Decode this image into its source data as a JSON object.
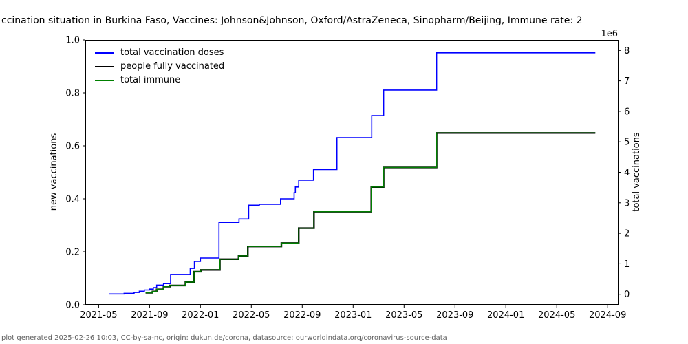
{
  "title": "ccination situation in Burkina Faso, Vaccines: Johnson&Johnson, Oxford/AstraZeneca, Sinopharm/Beijing, Immune rate: 2",
  "footer": "plot generated 2025-02-26 10:03, CC-by-sa-nc, origin: dukun.de/corona, datasource: ourworldindata.org/coronavirus-source-data",
  "legend": [
    {
      "label": "total vaccination doses",
      "color": "#0000ff"
    },
    {
      "label": "people fully vaccinated",
      "color": "#000000"
    },
    {
      "label": "total immune",
      "color": "#008000"
    }
  ],
  "left_axis": {
    "label": "new vaccinations"
  },
  "right_axis": {
    "label": "total vaccinations",
    "offset_label": "1e6"
  },
  "chart_data": {
    "type": "line",
    "step": "post",
    "grid": false,
    "legend_position": "upper left",
    "x_tick_labels": [
      "2021-05",
      "2021-09",
      "2022-01",
      "2022-05",
      "2022-09",
      "2023-01",
      "2023-05",
      "2023-09",
      "2024-01",
      "2024-05",
      "2024-09"
    ],
    "left_axis_ticks": [
      {
        "v": 0,
        "label": "0.0"
      },
      {
        "v": 0.2,
        "label": "0.2"
      },
      {
        "v": 0.4,
        "label": "0.4"
      },
      {
        "v": 0.6,
        "label": "0.6"
      },
      {
        "v": 0.8,
        "label": "0.8"
      },
      {
        "v": 1,
        "label": "1.0"
      }
    ],
    "right_axis_ticks": [
      {
        "v": 0,
        "label": "0"
      },
      {
        "v": 1000000,
        "label": "1"
      },
      {
        "v": 2000000,
        "label": "2"
      },
      {
        "v": 3000000,
        "label": "3"
      },
      {
        "v": 4000000,
        "label": "4"
      },
      {
        "v": 5000000,
        "label": "5"
      },
      {
        "v": 6000000,
        "label": "6"
      },
      {
        "v": 7000000,
        "label": "7"
      },
      {
        "v": 8000000,
        "label": "8"
      }
    ],
    "xlim_dates": [
      "2021-03-30",
      "2024-09-27"
    ],
    "left_ylim": [
      0,
      1
    ],
    "right_ylim": [
      -345000,
      8345000
    ],
    "series": [
      {
        "name": "total vaccination doses",
        "color": "#0000ff",
        "axis": "right",
        "points": [
          [
            "2021-05-26",
            10000
          ],
          [
            "2021-07-01",
            30000
          ],
          [
            "2021-07-25",
            60000
          ],
          [
            "2021-08-07",
            100000
          ],
          [
            "2021-08-19",
            140000
          ],
          [
            "2021-09-01",
            170000
          ],
          [
            "2021-09-10",
            220000
          ],
          [
            "2021-09-18",
            300000
          ],
          [
            "2021-10-04",
            350000
          ],
          [
            "2021-10-21",
            650000
          ],
          [
            "2021-12-07",
            850000
          ],
          [
            "2021-12-17",
            1080000
          ],
          [
            "2022-01-01",
            1190000
          ],
          [
            "2022-02-15",
            2360000
          ],
          [
            "2022-04-02",
            2470000
          ],
          [
            "2022-04-25",
            2920000
          ],
          [
            "2022-05-20",
            2950000
          ],
          [
            "2022-07-10",
            3130000
          ],
          [
            "2022-08-12",
            3330000
          ],
          [
            "2022-08-15",
            3520000
          ],
          [
            "2022-08-23",
            3740000
          ],
          [
            "2022-09-28",
            4090000
          ],
          [
            "2022-11-23",
            5140000
          ],
          [
            "2023-02-15",
            5860000
          ],
          [
            "2023-03-13",
            6700000
          ],
          [
            "2023-07-18",
            7920000
          ],
          [
            "2024-08-02",
            7920000
          ]
        ]
      },
      {
        "name": "people fully vaccinated",
        "color": "#000000",
        "axis": "right",
        "points": [
          [
            "2021-08-22",
            50000
          ],
          [
            "2021-09-08",
            90000
          ],
          [
            "2021-09-18",
            160000
          ],
          [
            "2021-10-04",
            250000
          ],
          [
            "2021-10-19",
            290000
          ],
          [
            "2021-11-26",
            400000
          ],
          [
            "2021-12-16",
            740000
          ],
          [
            "2022-01-02",
            800000
          ],
          [
            "2022-02-17",
            1150000
          ],
          [
            "2022-04-01",
            1260000
          ],
          [
            "2022-04-23",
            1570000
          ],
          [
            "2022-07-12",
            1680000
          ],
          [
            "2022-08-23",
            2170000
          ],
          [
            "2022-09-29",
            2710000
          ],
          [
            "2023-02-14",
            3520000
          ],
          [
            "2023-03-13",
            4160000
          ],
          [
            "2023-07-18",
            5290000
          ],
          [
            "2024-08-02",
            5290000
          ]
        ]
      },
      {
        "name": "total immune",
        "color": "#008000",
        "axis": "right",
        "points": [
          [
            "2021-08-22",
            50000
          ],
          [
            "2021-09-08",
            90000
          ],
          [
            "2021-09-18",
            160000
          ],
          [
            "2021-10-04",
            250000
          ],
          [
            "2021-10-19",
            290000
          ],
          [
            "2021-11-26",
            400000
          ],
          [
            "2021-12-16",
            740000
          ],
          [
            "2022-01-02",
            800000
          ],
          [
            "2022-02-17",
            1150000
          ],
          [
            "2022-04-01",
            1260000
          ],
          [
            "2022-04-23",
            1570000
          ],
          [
            "2022-07-12",
            1680000
          ],
          [
            "2022-08-23",
            2170000
          ],
          [
            "2022-09-29",
            2710000
          ],
          [
            "2023-02-14",
            3520000
          ],
          [
            "2023-03-13",
            4160000
          ],
          [
            "2023-07-18",
            5290000
          ],
          [
            "2024-08-02",
            5290000
          ]
        ]
      }
    ]
  }
}
